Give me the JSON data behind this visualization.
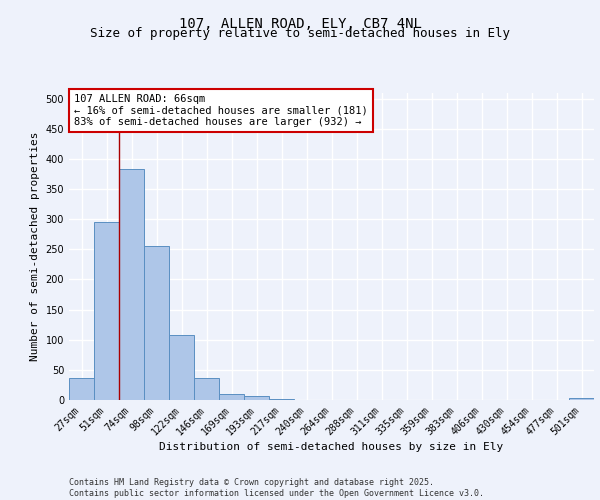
{
  "title_line1": "107, ALLEN ROAD, ELY, CB7 4NL",
  "title_line2": "Size of property relative to semi-detached houses in Ely",
  "xlabel": "Distribution of semi-detached houses by size in Ely",
  "ylabel": "Number of semi-detached properties",
  "categories": [
    "27sqm",
    "51sqm",
    "74sqm",
    "98sqm",
    "122sqm",
    "146sqm",
    "169sqm",
    "193sqm",
    "217sqm",
    "240sqm",
    "264sqm",
    "288sqm",
    "311sqm",
    "335sqm",
    "359sqm",
    "383sqm",
    "406sqm",
    "430sqm",
    "454sqm",
    "477sqm",
    "501sqm"
  ],
  "values": [
    37,
    295,
    383,
    255,
    107,
    37,
    10,
    7,
    2,
    0,
    0,
    0,
    0,
    0,
    0,
    0,
    0,
    0,
    0,
    0,
    3
  ],
  "bar_color": "#aec6e8",
  "bar_edge_color": "#5a8fc2",
  "background_color": "#eef2fb",
  "grid_color": "#ffffff",
  "red_line_x": 1.5,
  "annotation_text": "107 ALLEN ROAD: 66sqm\n← 16% of semi-detached houses are smaller (181)\n83% of semi-detached houses are larger (932) →",
  "annotation_box_color": "#ffffff",
  "annotation_box_edge": "#cc0000",
  "ylim": [
    0,
    510
  ],
  "yticks": [
    0,
    50,
    100,
    150,
    200,
    250,
    300,
    350,
    400,
    450,
    500
  ],
  "footer_text": "Contains HM Land Registry data © Crown copyright and database right 2025.\nContains public sector information licensed under the Open Government Licence v3.0.",
  "title_fontsize": 10,
  "subtitle_fontsize": 9,
  "axis_label_fontsize": 8,
  "tick_fontsize": 7,
  "annotation_fontsize": 7.5,
  "footer_fontsize": 6
}
